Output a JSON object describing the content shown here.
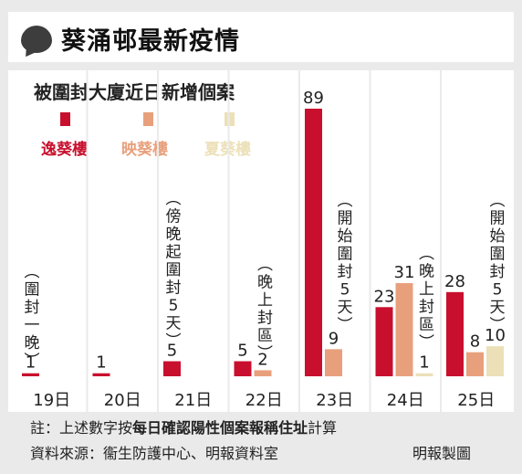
{
  "header": {
    "title": "葵涌邨最新疫情",
    "icon": "speech-bubble-icon"
  },
  "chart_data": {
    "type": "bar",
    "title": "被圍封大廈近日新增個案",
    "categories": [
      "19日",
      "20日",
      "21日",
      "22日",
      "23日",
      "24日",
      "25日"
    ],
    "series": [
      {
        "name": "逸葵樓",
        "color": "#c8102e",
        "values": [
          1,
          1,
          5,
          5,
          89,
          23,
          28
        ]
      },
      {
        "name": "映葵樓",
        "color": "#e8a07c",
        "values": [
          null,
          null,
          null,
          2,
          9,
          31,
          8
        ]
      },
      {
        "name": "夏葵樓",
        "color": "#ece0b8",
        "values": [
          null,
          null,
          null,
          null,
          null,
          1,
          10
        ]
      }
    ],
    "ylim": [
      0,
      89
    ],
    "grid": false,
    "legend": "top-left",
    "annotations": [
      {
        "day": "19日",
        "parts": [
          {
            "text": "（圍封一晚）",
            "color": "#222222"
          }
        ]
      },
      {
        "day": "21日",
        "parts": [
          {
            "text": "（傍晚起",
            "color": "#222222"
          },
          {
            "text": "圍封5天",
            "color": "#c8102e"
          },
          {
            "text": "）",
            "color": "#222222"
          }
        ]
      },
      {
        "day": "22日",
        "parts": [
          {
            "text": "（晚上封區）",
            "color": "#222222"
          }
        ]
      },
      {
        "day": "23日",
        "parts": [
          {
            "text": "（開始",
            "color": "#222222"
          },
          {
            "text": "圍封5天",
            "color": "#e08c5c"
          },
          {
            "text": "）",
            "color": "#222222"
          }
        ]
      },
      {
        "day": "24日",
        "parts": [
          {
            "text": "（晚上封區）",
            "color": "#222222"
          }
        ]
      },
      {
        "day": "25日",
        "parts": [
          {
            "text": "（開始",
            "color": "#222222"
          },
          {
            "text": "圍封5天",
            "color": "#c8a84c"
          },
          {
            "text": "）",
            "color": "#222222"
          }
        ]
      }
    ]
  },
  "footer": {
    "note_prefix": "註：上述數字按",
    "note_bold": "每日確認陽性個案報稱住址",
    "note_suffix": "計算",
    "source": "資料來源：衞生防護中心、明報資料室",
    "credit": "明報製圖"
  }
}
